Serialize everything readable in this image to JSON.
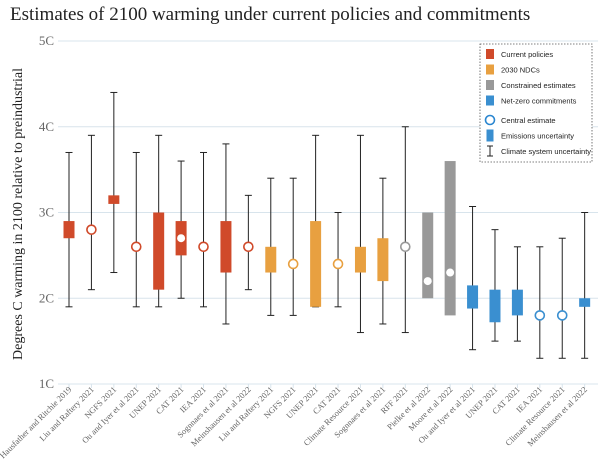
{
  "chart_data": {
    "type": "box-range",
    "title": "Estimates of 2100 warming under current policies and commitments",
    "ylabel": "Degrees C warming in 2100 relative to preindustrial",
    "xlabel": "",
    "ylim": [
      1,
      5
    ],
    "yticks": [
      "1C",
      "2C",
      "3C",
      "4C",
      "5C"
    ],
    "grid": true,
    "legend_position": "top-right",
    "colors": {
      "current": "#d04a2a",
      "ndc": "#e8a040",
      "constrained": "#999999",
      "netzero": "#3a8fd0",
      "circle_stroke": "#2a86d0",
      "whisker": "#222222",
      "grid": "#d8e4ec"
    },
    "legend": [
      {
        "key": "current",
        "label": "Current policies",
        "kind": "swatch"
      },
      {
        "key": "ndc",
        "label": "2030 NDCs",
        "kind": "swatch"
      },
      {
        "key": "constrained",
        "label": "Constrained estimates",
        "kind": "swatch"
      },
      {
        "key": "netzero",
        "label": "Net-zero commitments",
        "kind": "swatch"
      },
      {
        "key": "central",
        "label": "Central estimate",
        "kind": "circle"
      },
      {
        "key": "emissions",
        "label": "Emissions uncertainty",
        "kind": "bar"
      },
      {
        "key": "climate",
        "label": "Climate system uncertainty",
        "kind": "whisker"
      }
    ],
    "series": [
      {
        "label": "Hausfather and Ritchie 2019",
        "group": "current",
        "whisker": [
          1.9,
          3.7
        ],
        "box": [
          2.7,
          2.9
        ],
        "central": null
      },
      {
        "label": "Liu and Raftery 2021",
        "group": "current",
        "whisker": [
          2.1,
          3.9
        ],
        "box": null,
        "central": 2.8
      },
      {
        "label": "NGFS 2021",
        "group": "current",
        "whisker": [
          2.3,
          4.4
        ],
        "box": [
          3.1,
          3.2
        ],
        "central": null
      },
      {
        "label": "Ou and Iyer et al 2021",
        "group": "current",
        "whisker": [
          1.9,
          3.7
        ],
        "box": null,
        "central": 2.6
      },
      {
        "label": "UNEP 2021",
        "group": "current",
        "whisker": [
          1.9,
          3.9
        ],
        "box": [
          2.1,
          3.0
        ],
        "central": null
      },
      {
        "label": "CAT 2021",
        "group": "current",
        "whisker": [
          2.0,
          3.6
        ],
        "box": [
          2.5,
          2.9
        ],
        "central": 2.7
      },
      {
        "label": "IEA 2021",
        "group": "current",
        "whisker": [
          1.9,
          3.7
        ],
        "box": null,
        "central": 2.6
      },
      {
        "label": "Sognnaes et al 2021",
        "group": "current",
        "whisker": [
          1.7,
          3.8
        ],
        "box": [
          2.3,
          2.9
        ],
        "central": null
      },
      {
        "label": "Meinshausen et al 2022",
        "group": "current",
        "whisker": [
          2.1,
          3.2
        ],
        "box": null,
        "central": 2.6
      },
      {
        "label": "Liu and Raftery 2021",
        "group": "ndc",
        "whisker": [
          1.8,
          3.4
        ],
        "box": [
          2.3,
          2.6
        ],
        "central": null
      },
      {
        "label": "NGFS 2021",
        "group": "ndc",
        "whisker": [
          1.8,
          3.4
        ],
        "box": null,
        "central": 2.4
      },
      {
        "label": "UNEP 2021",
        "group": "ndc",
        "whisker": [
          1.9,
          3.9
        ],
        "box": [
          1.9,
          2.9
        ],
        "central": null
      },
      {
        "label": "CAT 2021",
        "group": "ndc",
        "whisker": [
          1.9,
          3.0
        ],
        "box": null,
        "central": 2.4
      },
      {
        "label": "Climate Resource 2021",
        "group": "ndc",
        "whisker": [
          1.6,
          3.9
        ],
        "box": [
          2.3,
          2.6
        ],
        "central": null
      },
      {
        "label": "Sognnaes et al 2021",
        "group": "ndc",
        "whisker": [
          1.7,
          3.4
        ],
        "box": [
          2.2,
          2.7
        ],
        "central": null
      },
      {
        "label": "RFF 2021",
        "group": "constrained",
        "whisker": [
          1.6,
          4.0
        ],
        "box": null,
        "central": 2.6
      },
      {
        "label": "Pielke et al 2022",
        "group": "constrained",
        "whisker": null,
        "box": [
          2.0,
          3.0
        ],
        "central": 2.2
      },
      {
        "label": "Moore et al 2022",
        "group": "constrained",
        "whisker": null,
        "box": [
          1.8,
          3.6
        ],
        "central": 2.3
      },
      {
        "label": "Ou and Iyer et al 2021",
        "group": "netzero",
        "whisker": [
          1.4,
          3.07
        ],
        "box": [
          1.88,
          2.15
        ],
        "central": null
      },
      {
        "label": "UNEP 2021",
        "group": "netzero",
        "whisker": [
          1.5,
          2.8
        ],
        "box": [
          1.72,
          2.1
        ],
        "central": null
      },
      {
        "label": "CAT 2021",
        "group": "netzero",
        "whisker": [
          1.5,
          2.6
        ],
        "box": [
          1.8,
          2.1
        ],
        "central": null
      },
      {
        "label": "IEA 2021",
        "group": "netzero",
        "whisker": [
          1.3,
          2.6
        ],
        "box": null,
        "central": 1.8
      },
      {
        "label": "Climate Resource 2021",
        "group": "netzero",
        "whisker": [
          1.3,
          2.7
        ],
        "box": null,
        "central": 1.8
      },
      {
        "label": "Meinshausen et al 2022",
        "group": "netzero",
        "whisker": [
          1.3,
          3.0
        ],
        "box": [
          1.9,
          2.0
        ],
        "central": null
      }
    ]
  }
}
